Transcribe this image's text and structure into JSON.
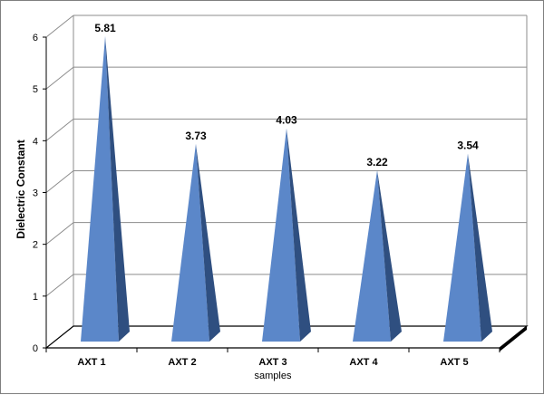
{
  "chart_data": {
    "type": "bar",
    "shape": "3d-pyramid",
    "categories": [
      "AXT 1",
      "AXT 2",
      "AXT 3",
      "AXT 4",
      "AXT 5"
    ],
    "values": [
      5.81,
      3.73,
      4.03,
      3.22,
      3.54
    ],
    "value_labels": [
      "5.81",
      "3.73",
      "4.03",
      "3.22",
      "3.54"
    ],
    "xlabel": "samples",
    "ylabel": "Dielectric Constant",
    "ylim": [
      0,
      6
    ],
    "yticks": [
      "0",
      "1",
      "2",
      "3",
      "4",
      "5",
      "6"
    ],
    "grid": true,
    "legend": "none",
    "colors": {
      "front": "#5b87c9",
      "side": "#2f4f80",
      "floor": "#ffffff",
      "grid": "#8c8c8c"
    }
  }
}
